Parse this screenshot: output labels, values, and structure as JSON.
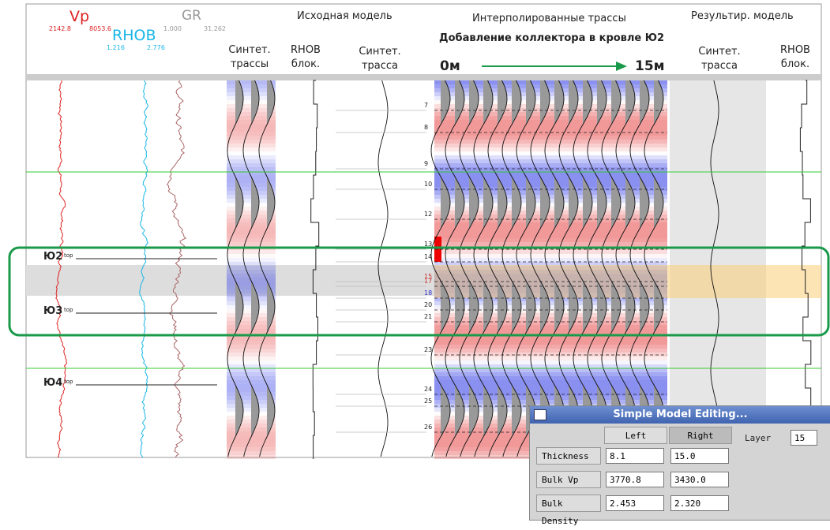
{
  "header": {
    "vp": {
      "label": "Vp",
      "min": "2142.8",
      "max": "8053.6"
    },
    "rhob": {
      "label": "RHOB",
      "min": "1.216",
      "max": "2.776"
    },
    "gr": {
      "label": "GR",
      "min": "1.000",
      "max": "31.262"
    },
    "sections": [
      "Исходная модель",
      "Интерполированные трассы",
      "Результир. модель"
    ],
    "subtitle": "Добавление коллектора в кровле Ю2",
    "start": "0м",
    "end": "15м",
    "columns": [
      [
        "Синтет.",
        "трассы"
      ],
      [
        "RHOB",
        "блок."
      ],
      [
        "Синтет.",
        "трасса"
      ],
      [
        "Синтет.",
        "трасса"
      ],
      [
        "RHOB",
        "блок."
      ]
    ]
  },
  "horizons": [
    {
      "name": "Ю2",
      "suffix": "top"
    },
    {
      "name": "Ю3",
      "suffix": "top"
    },
    {
      "name": "Ю4",
      "suffix": "top"
    }
  ],
  "layers": [
    "7",
    "8",
    "9",
    "10",
    "12",
    "13",
    "14",
    "15",
    "17",
    "18",
    "20",
    "21",
    "23",
    "24",
    "25",
    "26"
  ],
  "dialog": {
    "title": "Simple Model Editing...",
    "left": "Left",
    "right": "Right",
    "layer_label": "Layer",
    "layer_value": "15",
    "rows": [
      [
        "Thickness",
        "8.1",
        "15.0"
      ],
      [
        "Bulk Vp",
        "3770.8",
        "3430.0"
      ],
      [
        "Bulk Density",
        "2.453",
        "2.320"
      ]
    ]
  }
}
